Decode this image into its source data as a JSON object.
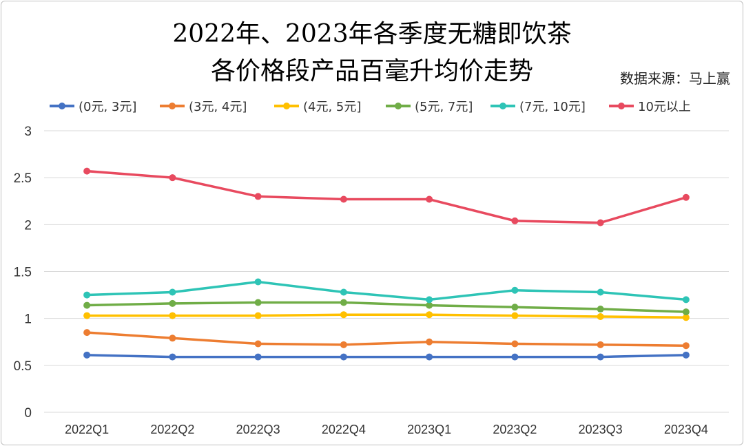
{
  "chart_data": {
    "type": "line",
    "title_line1": "2022年、2023年各季度无糖即饮茶",
    "title_line2": "各价格段产品百毫升均价走势",
    "source": "数据来源：马上赢",
    "categories": [
      "2022Q1",
      "2022Q2",
      "2022Q3",
      "2022Q4",
      "2023Q1",
      "2023Q2",
      "2023Q3",
      "2023Q4"
    ],
    "ylim": [
      0,
      3
    ],
    "yticks": [
      "0",
      "0.5",
      "1",
      "1.5",
      "2",
      "2.5",
      "3"
    ],
    "ytick_values": [
      0,
      0.5,
      1,
      1.5,
      2,
      2.5,
      3
    ],
    "grid": true,
    "legend_position": "top",
    "series": [
      {
        "name": "(0元, 3元]",
        "color": "#4472C4",
        "values": [
          0.61,
          0.59,
          0.59,
          0.59,
          0.59,
          0.59,
          0.59,
          0.61
        ]
      },
      {
        "name": "(3元, 4元]",
        "color": "#ED7D31",
        "values": [
          0.85,
          0.79,
          0.73,
          0.72,
          0.75,
          0.73,
          0.72,
          0.71
        ]
      },
      {
        "name": "(4元, 5元]",
        "color": "#FFC000",
        "values": [
          1.03,
          1.03,
          1.03,
          1.04,
          1.04,
          1.03,
          1.02,
          1.01
        ]
      },
      {
        "name": "(5元, 7元]",
        "color": "#70AD47",
        "values": [
          1.14,
          1.16,
          1.17,
          1.17,
          1.14,
          1.12,
          1.1,
          1.07
        ]
      },
      {
        "name": "(7元, 10元]",
        "color": "#2EC4B6",
        "values": [
          1.25,
          1.28,
          1.39,
          1.28,
          1.2,
          1.3,
          1.28,
          1.2
        ]
      },
      {
        "name": "10元以上",
        "color": "#E84A5F",
        "values": [
          2.57,
          2.5,
          2.3,
          2.27,
          2.27,
          2.04,
          2.02,
          2.29
        ]
      }
    ]
  }
}
